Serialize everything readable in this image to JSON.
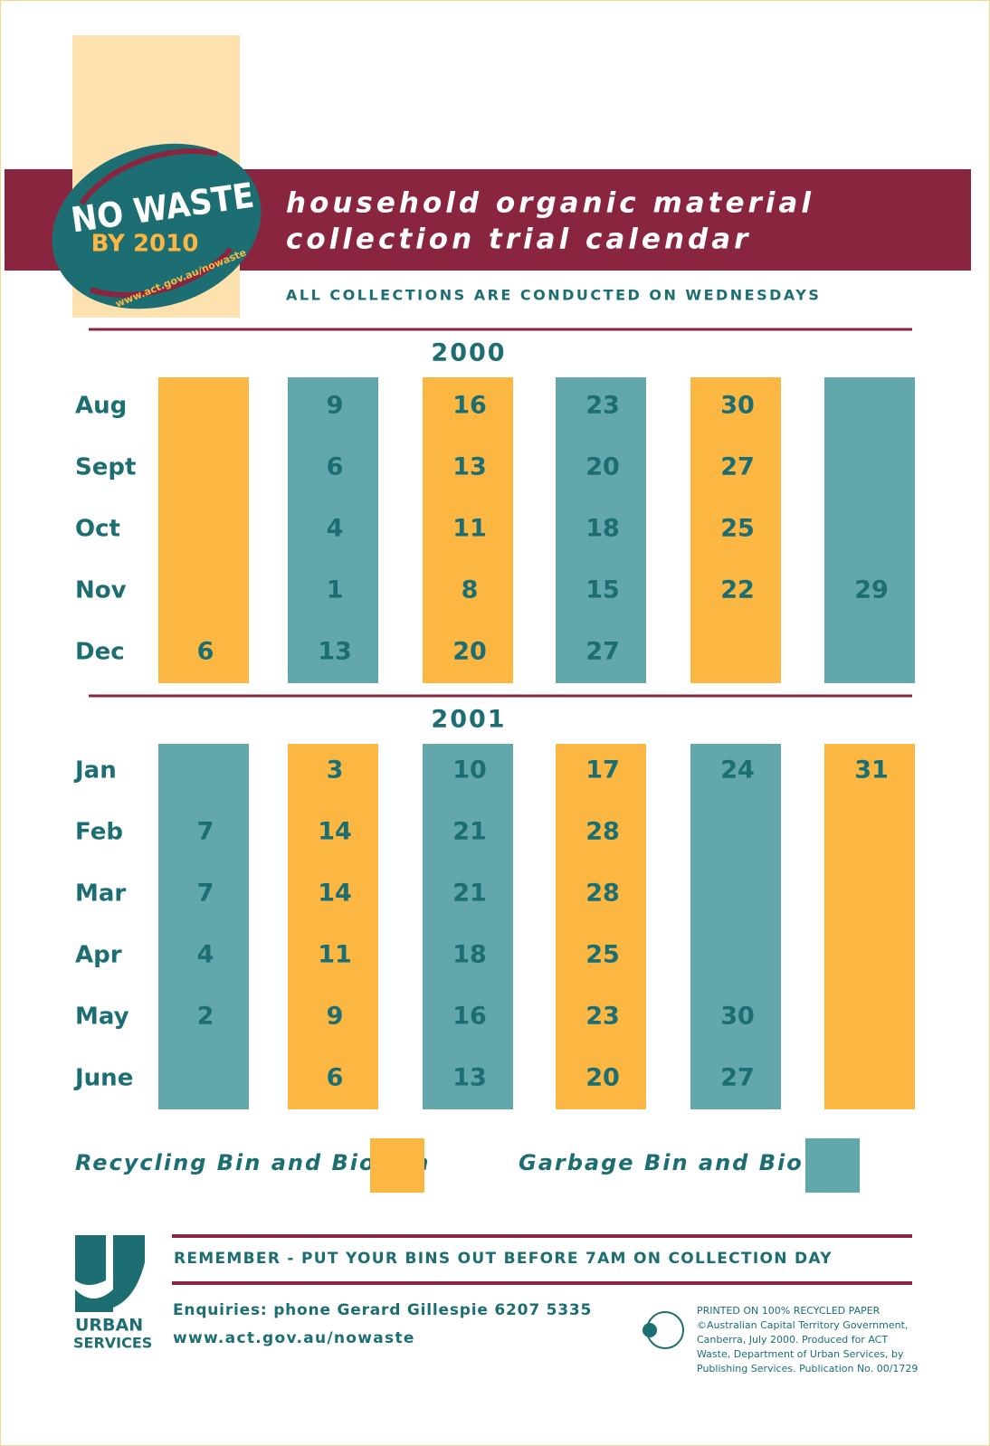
{
  "logo": {
    "line1": "NO WASTE",
    "line2": "BY 2010",
    "url": "www.act.gov.au/nowaste"
  },
  "header": {
    "title_line1": "household organic material",
    "title_line2": "collection trial calendar",
    "subtitle": "ALL COLLECTIONS ARE CONDUCTED ON WEDNESDAYS"
  },
  "years": [
    {
      "year": "2000",
      "column_colors": [
        "#fbb741",
        "#61a7ac",
        "#fbb741",
        "#61a7ac",
        "#fbb741",
        "#61a7ac"
      ],
      "months": [
        {
          "name": "Aug",
          "days": [
            null,
            9,
            16,
            23,
            30,
            null
          ]
        },
        {
          "name": "Sept",
          "days": [
            null,
            6,
            13,
            20,
            27,
            null
          ]
        },
        {
          "name": "Oct",
          "days": [
            null,
            4,
            11,
            18,
            25,
            null
          ]
        },
        {
          "name": "Nov",
          "days": [
            null,
            1,
            8,
            15,
            22,
            29
          ]
        },
        {
          "name": "Dec",
          "days": [
            6,
            13,
            20,
            27,
            null,
            null
          ]
        }
      ]
    },
    {
      "year": "2001",
      "column_colors": [
        "#61a7ac",
        "#fbb741",
        "#61a7ac",
        "#fbb741",
        "#61a7ac",
        "#fbb741"
      ],
      "months": [
        {
          "name": "Jan",
          "days": [
            null,
            3,
            10,
            17,
            24,
            31
          ]
        },
        {
          "name": "Feb",
          "days": [
            7,
            14,
            21,
            28,
            null,
            null
          ]
        },
        {
          "name": "Mar",
          "days": [
            7,
            14,
            21,
            28,
            null,
            null
          ]
        },
        {
          "name": "Apr",
          "days": [
            4,
            11,
            18,
            25,
            null,
            null
          ]
        },
        {
          "name": "May",
          "days": [
            2,
            9,
            16,
            23,
            30,
            null
          ]
        },
        {
          "name": "June",
          "days": [
            null,
            6,
            13,
            20,
            27,
            null
          ]
        }
      ]
    }
  ],
  "legend": [
    {
      "label": "Recycling Bin and Bio Bin",
      "color": "#fbb741"
    },
    {
      "label": "Garbage Bin and Bio Bin",
      "color": "#61a7ac"
    }
  ],
  "footer": {
    "agency_line1": "URBAN",
    "agency_line2": "SERVICES",
    "reminder": "REMEMBER - PUT YOUR BINS OUT BEFORE 7AM ON COLLECTION DAY",
    "enquiries": "Enquiries: phone Gerard Gillespie 6207 5335",
    "url": "www.act.gov.au/nowaste",
    "imprint": [
      "PRINTED ON 100% RECYCLED PAPER",
      "©Australian Capital Territory Government,",
      "Canberra, July 2000. Produced for ACT",
      "Waste, Department of Urban Services, by",
      "Publishing Services. Publication No. 00/1729"
    ]
  }
}
